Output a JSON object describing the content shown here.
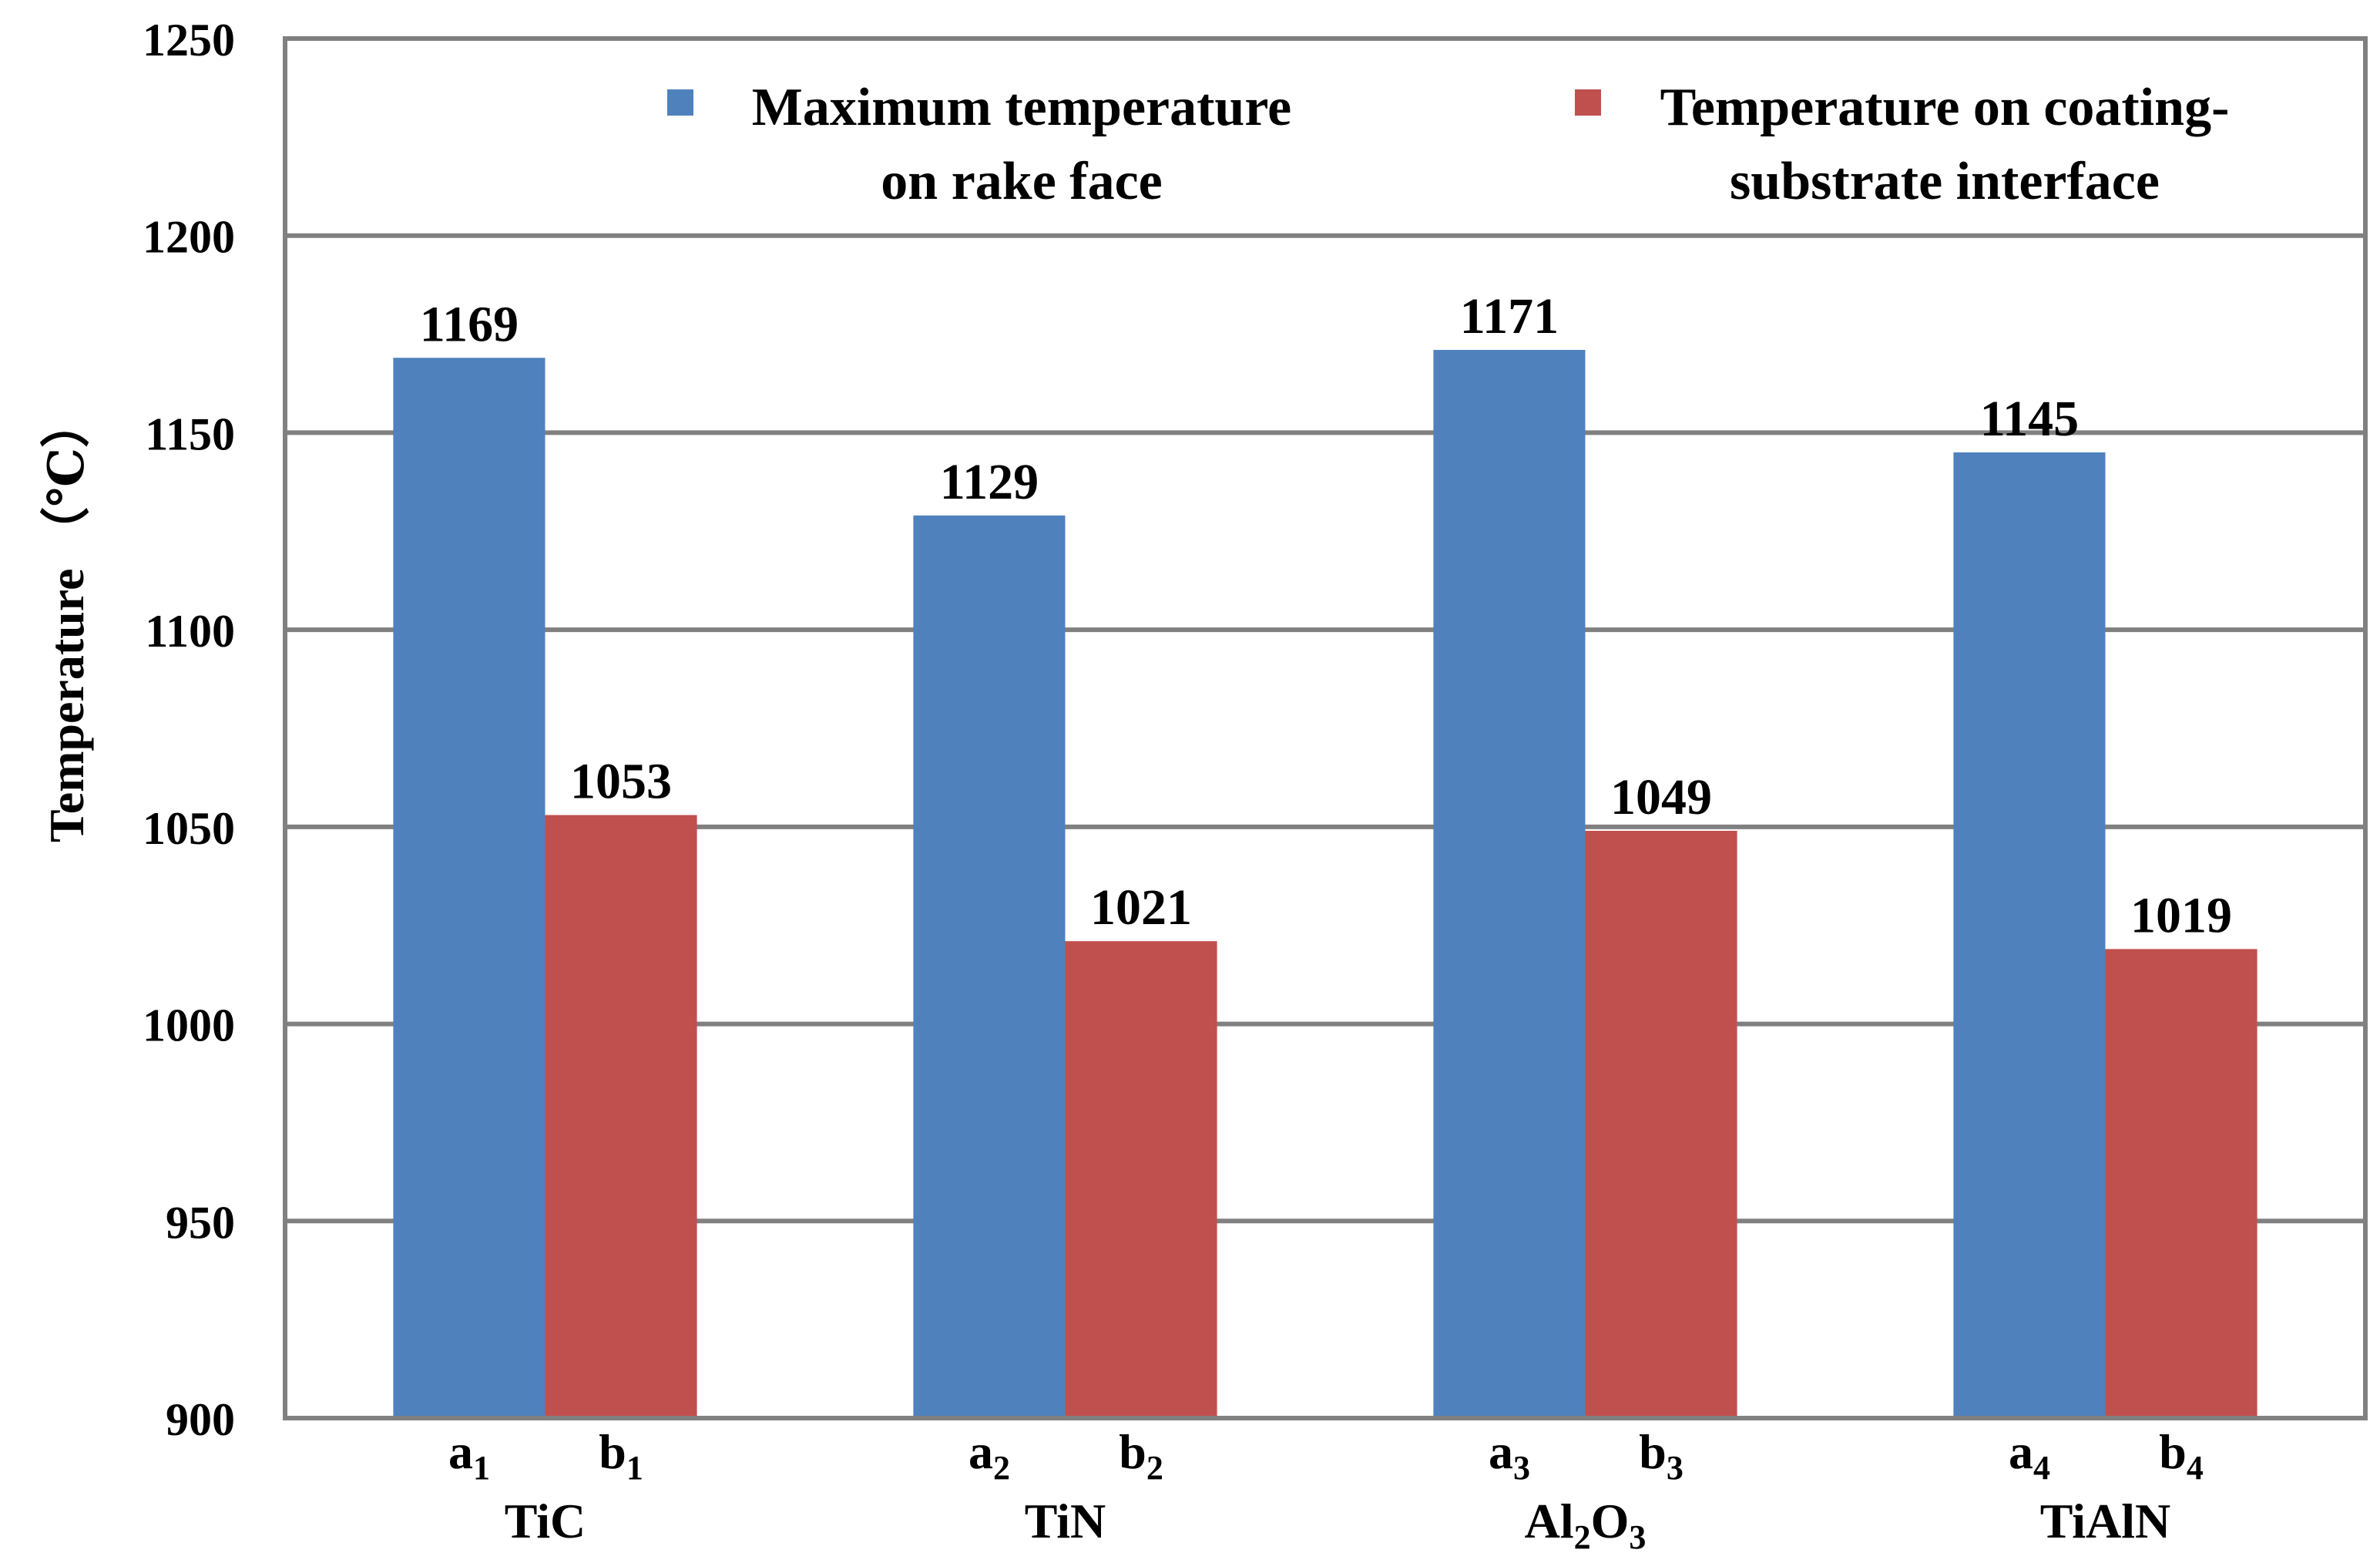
{
  "chart_data": {
    "type": "bar",
    "title": "",
    "xlabel": "",
    "ylabel": "Temperature （℃）",
    "ylim": [
      900,
      1250
    ],
    "yticks": [
      900,
      950,
      1000,
      1050,
      1100,
      1150,
      1200,
      1250
    ],
    "grid": true,
    "legend_position": "top",
    "categories": [
      {
        "label": "TiC",
        "parts": [
          {
            "t": "TiC"
          }
        ]
      },
      {
        "label": "TiN",
        "parts": [
          {
            "t": "TiN"
          }
        ]
      },
      {
        "label": "Al2O3",
        "parts": [
          {
            "t": "Al"
          },
          {
            "t": "2",
            "sub": true
          },
          {
            "t": "O"
          },
          {
            "t": "3",
            "sub": true
          }
        ]
      },
      {
        "label": "TiAlN",
        "parts": [
          {
            "t": "TiAlN"
          }
        ]
      }
    ],
    "series": [
      {
        "name": "Maximum temperature on rake face",
        "legend_lines": [
          "Maximum temperature",
          "on rake face"
        ],
        "color": "#4F81BD",
        "bar_labels": [
          {
            "base": "a",
            "sub": "1"
          },
          {
            "base": "a",
            "sub": "2"
          },
          {
            "base": "a",
            "sub": "3"
          },
          {
            "base": "a",
            "sub": "4"
          }
        ],
        "values": [
          1169,
          1129,
          1171,
          1145
        ]
      },
      {
        "name": "Temperature on coating-substrate interface",
        "legend_lines": [
          "Temperature on coating-",
          "substrate interface"
        ],
        "color": "#C0504D",
        "bar_labels": [
          {
            "base": "b",
            "sub": "1"
          },
          {
            "base": "b",
            "sub": "2"
          },
          {
            "base": "b",
            "sub": "3"
          },
          {
            "base": "b",
            "sub": "4"
          }
        ],
        "values": [
          1053,
          1021,
          1049,
          1019
        ]
      }
    ],
    "colors": {
      "axis": "#808080",
      "grid": "#808080",
      "text": "#000000"
    }
  }
}
